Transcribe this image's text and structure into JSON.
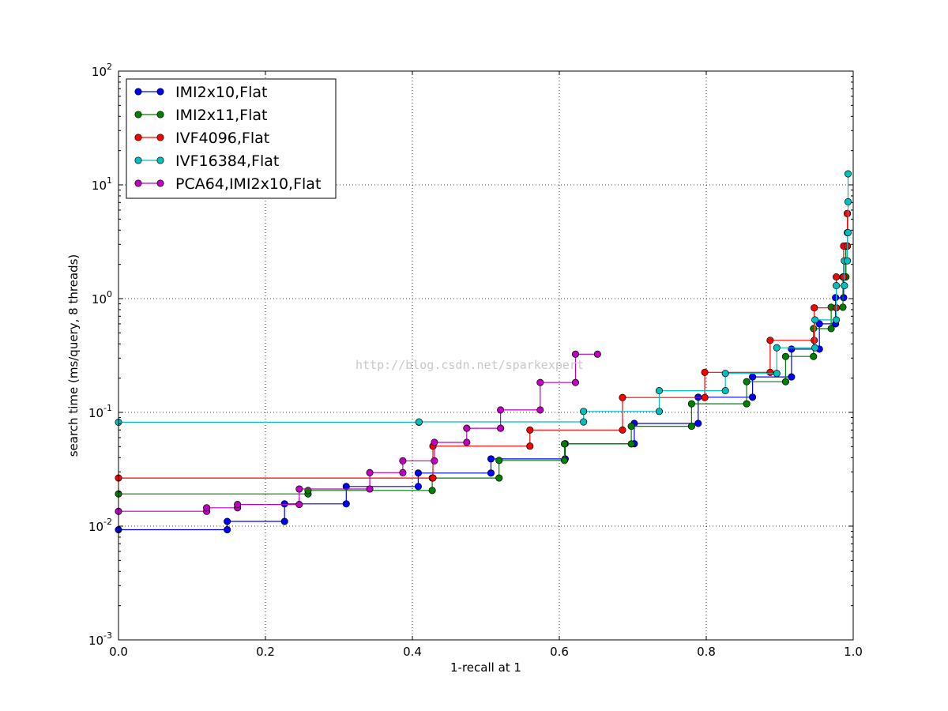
{
  "chart_data": {
    "type": "line",
    "xlabel": "1-recall at 1",
    "ylabel": "search time (ms/query, 8 threads)",
    "xlim": [
      0.0,
      1.0
    ],
    "ylim": [
      0.001,
      100
    ],
    "yscale": "log",
    "grid": true,
    "legend_position": "top-left",
    "watermark": "http://blog.csdn.net/sparkexpert",
    "x_ticks": [
      "0.0",
      "0.2",
      "0.4",
      "0.6",
      "0.8",
      "1.0"
    ],
    "y_ticks": [
      {
        "base": "10",
        "exp": "-3"
      },
      {
        "base": "10",
        "exp": "-2"
      },
      {
        "base": "10",
        "exp": "-1"
      },
      {
        "base": "10",
        "exp": "0"
      },
      {
        "base": "10",
        "exp": "1"
      },
      {
        "base": "10",
        "exp": "2"
      }
    ],
    "series": [
      {
        "name": "IMI2x10,Flat",
        "color": "#0000ff",
        "points": [
          [
            0.0,
            0.0093
          ],
          [
            0.148,
            0.0093
          ],
          [
            0.148,
            0.011
          ],
          [
            0.226,
            0.011
          ],
          [
            0.226,
            0.0157
          ],
          [
            0.31,
            0.0157
          ],
          [
            0.31,
            0.0223
          ],
          [
            0.408,
            0.0223
          ],
          [
            0.408,
            0.0293
          ],
          [
            0.507,
            0.0293
          ],
          [
            0.507,
            0.039
          ],
          [
            0.608,
            0.039
          ],
          [
            0.608,
            0.053
          ],
          [
            0.702,
            0.053
          ],
          [
            0.702,
            0.08
          ],
          [
            0.789,
            0.08
          ],
          [
            0.789,
            0.136
          ],
          [
            0.863,
            0.136
          ],
          [
            0.863,
            0.205
          ],
          [
            0.916,
            0.205
          ],
          [
            0.916,
            0.36
          ],
          [
            0.954,
            0.36
          ],
          [
            0.954,
            0.6
          ],
          [
            0.976,
            0.6
          ],
          [
            0.976,
            1.02
          ],
          [
            0.987,
            1.02
          ],
          [
            0.987,
            1.55
          ],
          [
            0.99,
            1.55
          ],
          [
            0.99,
            2.9
          ],
          [
            0.992,
            2.9
          ]
        ]
      },
      {
        "name": "IMI2x11,Flat",
        "color": "#008000",
        "points": [
          [
            0.0,
            0.0192
          ],
          [
            0.258,
            0.0192
          ],
          [
            0.258,
            0.0206
          ],
          [
            0.427,
            0.0206
          ],
          [
            0.427,
            0.0265
          ],
          [
            0.518,
            0.0265
          ],
          [
            0.518,
            0.0378
          ],
          [
            0.607,
            0.0378
          ],
          [
            0.607,
            0.0528
          ],
          [
            0.698,
            0.0528
          ],
          [
            0.698,
            0.0755
          ],
          [
            0.78,
            0.0755
          ],
          [
            0.78,
            0.119
          ],
          [
            0.855,
            0.119
          ],
          [
            0.855,
            0.186
          ],
          [
            0.908,
            0.186
          ],
          [
            0.908,
            0.31
          ],
          [
            0.946,
            0.31
          ],
          [
            0.946,
            0.545
          ],
          [
            0.97,
            0.545
          ],
          [
            0.97,
            0.84
          ],
          [
            0.986,
            0.84
          ],
          [
            0.986,
            1.55
          ],
          [
            0.99,
            1.55
          ],
          [
            0.99,
            2.9
          ],
          [
            0.992,
            2.9
          ],
          [
            0.992,
            5.6
          ]
        ]
      },
      {
        "name": "IVF4096,Flat",
        "color": "#ff0000",
        "points": [
          [
            0.0,
            0.0265
          ],
          [
            0.428,
            0.0265
          ],
          [
            0.428,
            0.0505
          ],
          [
            0.56,
            0.0505
          ],
          [
            0.56,
            0.07
          ],
          [
            0.686,
            0.07
          ],
          [
            0.686,
            0.135
          ],
          [
            0.798,
            0.135
          ],
          [
            0.798,
            0.225
          ],
          [
            0.887,
            0.225
          ],
          [
            0.887,
            0.43
          ],
          [
            0.947,
            0.43
          ],
          [
            0.947,
            0.83
          ],
          [
            0.977,
            0.83
          ],
          [
            0.977,
            1.55
          ],
          [
            0.987,
            1.55
          ],
          [
            0.987,
            2.9
          ],
          [
            0.992,
            2.9
          ],
          [
            0.992,
            5.6
          ]
        ]
      },
      {
        "name": "IVF16384,Flat",
        "color": "#00bfbf",
        "points": [
          [
            0.0,
            0.082
          ],
          [
            0.409,
            0.082
          ],
          [
            0.409,
            0.0825
          ],
          [
            0.633,
            0.0825
          ],
          [
            0.633,
            0.102
          ],
          [
            0.736,
            0.102
          ],
          [
            0.736,
            0.155
          ],
          [
            0.826,
            0.155
          ],
          [
            0.826,
            0.22
          ],
          [
            0.896,
            0.22
          ],
          [
            0.896,
            0.37
          ],
          [
            0.948,
            0.37
          ],
          [
            0.948,
            0.65
          ],
          [
            0.977,
            0.65
          ],
          [
            0.977,
            1.3
          ],
          [
            0.988,
            1.3
          ],
          [
            0.988,
            2.15
          ],
          [
            0.992,
            2.15
          ],
          [
            0.992,
            3.8
          ],
          [
            0.993,
            3.8
          ],
          [
            0.993,
            7.1
          ],
          [
            0.993,
            12.5
          ]
        ]
      },
      {
        "name": "PCA64,IMI2x10,Flat",
        "color": "#bf00bf",
        "points": [
          [
            0.0,
            0.0135
          ],
          [
            0.12,
            0.0135
          ],
          [
            0.12,
            0.0145
          ],
          [
            0.162,
            0.0145
          ],
          [
            0.162,
            0.0155
          ],
          [
            0.246,
            0.0155
          ],
          [
            0.246,
            0.0212
          ],
          [
            0.342,
            0.0212
          ],
          [
            0.342,
            0.0295
          ],
          [
            0.387,
            0.0295
          ],
          [
            0.387,
            0.0375
          ],
          [
            0.43,
            0.0375
          ],
          [
            0.43,
            0.0545
          ],
          [
            0.474,
            0.0545
          ],
          [
            0.474,
            0.0725
          ],
          [
            0.52,
            0.0725
          ],
          [
            0.52,
            0.105
          ],
          [
            0.574,
            0.105
          ],
          [
            0.574,
            0.183
          ],
          [
            0.622,
            0.183
          ],
          [
            0.622,
            0.325
          ],
          [
            0.652,
            0.325
          ]
        ]
      }
    ]
  }
}
